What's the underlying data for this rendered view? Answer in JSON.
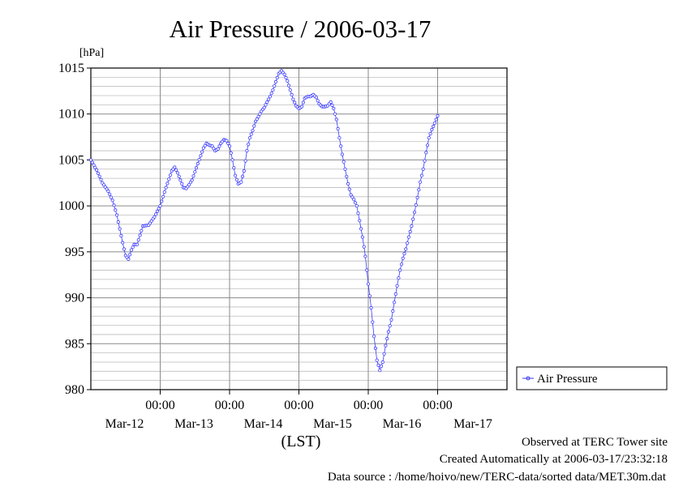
{
  "chart_data": {
    "type": "line",
    "title": "Air Pressure / 2006-03-17",
    "ylabel": "[hPa]",
    "xlabel": "(LST)",
    "ylim": [
      980,
      1015
    ],
    "yticks": [
      980,
      985,
      990,
      995,
      1000,
      1005,
      1010,
      1015
    ],
    "x_unit": "hours since Mar-11 00:00 (LST)",
    "xlim": [
      24,
      168
    ],
    "x_tick_labels": [
      {
        "x": 48,
        "time": "00:00",
        "date": "Mar-12"
      },
      {
        "x": 72,
        "time": "00:00",
        "date": "Mar-13"
      },
      {
        "x": 96,
        "time": "00:00",
        "date": "Mar-14"
      },
      {
        "x": 120,
        "time": "00:00",
        "date": "Mar-15"
      },
      {
        "x": 144,
        "time": "00:00",
        "date": "Mar-16"
      },
      {
        "x": null,
        "time": "",
        "date": "Mar-17"
      }
    ],
    "grid": true,
    "legend_position": "right",
    "series": [
      {
        "name": "Air Pressure",
        "color": "#3a3aff",
        "points": [
          [
            24,
            1005.0
          ],
          [
            26,
            1003.9
          ],
          [
            28,
            1002.5
          ],
          [
            30,
            1001.6
          ],
          [
            31.5,
            1000.6
          ],
          [
            33,
            999.0
          ],
          [
            34,
            997.5
          ],
          [
            35,
            996.0
          ],
          [
            36,
            994.6
          ],
          [
            37,
            994.2
          ],
          [
            38,
            995.2
          ],
          [
            39,
            995.8
          ],
          [
            40,
            995.8
          ],
          [
            41,
            996.8
          ],
          [
            42,
            997.8
          ],
          [
            44,
            997.9
          ],
          [
            46,
            998.8
          ],
          [
            48,
            1000.0
          ],
          [
            50,
            1002.0
          ],
          [
            52,
            1003.8
          ],
          [
            53,
            1004.2
          ],
          [
            54,
            1003.6
          ],
          [
            55,
            1002.8
          ],
          [
            56,
            1002.0
          ],
          [
            57,
            1001.9
          ],
          [
            58,
            1002.3
          ],
          [
            59,
            1002.8
          ],
          [
            61,
            1004.6
          ],
          [
            63,
            1006.3
          ],
          [
            64,
            1006.8
          ],
          [
            65,
            1006.6
          ],
          [
            66,
            1006.5
          ],
          [
            67,
            1006.0
          ],
          [
            68,
            1006.2
          ],
          [
            69,
            1006.8
          ],
          [
            70,
            1007.2
          ],
          [
            71,
            1007.1
          ],
          [
            72,
            1006.5
          ],
          [
            73,
            1005.0
          ],
          [
            74,
            1003.3
          ],
          [
            75,
            1002.4
          ],
          [
            76,
            1002.6
          ],
          [
            77,
            1003.8
          ],
          [
            78,
            1006.0
          ],
          [
            79,
            1007.4
          ],
          [
            80,
            1008.2
          ],
          [
            81,
            1009.2
          ],
          [
            82,
            1009.7
          ],
          [
            83,
            1010.3
          ],
          [
            84,
            1010.7
          ],
          [
            85,
            1011.3
          ],
          [
            86,
            1011.9
          ],
          [
            87,
            1012.6
          ],
          [
            88,
            1013.5
          ],
          [
            89,
            1014.4
          ],
          [
            90,
            1014.7
          ],
          [
            91,
            1014.3
          ],
          [
            92,
            1013.6
          ],
          [
            93,
            1012.6
          ],
          [
            94,
            1011.6
          ],
          [
            95,
            1010.9
          ],
          [
            96,
            1010.6
          ],
          [
            97,
            1010.8
          ],
          [
            98,
            1011.7
          ],
          [
            99,
            1011.9
          ],
          [
            100,
            1011.9
          ],
          [
            101,
            1012.1
          ],
          [
            102,
            1011.8
          ],
          [
            103,
            1011.1
          ],
          [
            104,
            1010.8
          ],
          [
            105,
            1010.8
          ],
          [
            106,
            1010.9
          ],
          [
            107,
            1011.3
          ],
          [
            108,
            1010.6
          ],
          [
            109,
            1009.4
          ],
          [
            110,
            1007.4
          ],
          [
            111,
            1005.6
          ],
          [
            112,
            1004.0
          ],
          [
            113,
            1002.4
          ],
          [
            114,
            1001.2
          ],
          [
            115,
            1000.7
          ],
          [
            116,
            1000.0
          ],
          [
            117,
            998.4
          ],
          [
            118,
            996.6
          ],
          [
            119,
            994.5
          ],
          [
            120,
            991.5
          ],
          [
            121,
            988.9
          ],
          [
            122,
            985.8
          ],
          [
            123,
            983.2
          ],
          [
            124,
            982.1
          ],
          [
            125,
            983.0
          ],
          [
            126,
            984.8
          ],
          [
            127,
            986.3
          ],
          [
            128,
            987.6
          ],
          [
            129,
            989.5
          ],
          [
            130,
            991.3
          ],
          [
            131,
            993.0
          ],
          [
            132,
            994.3
          ],
          [
            133,
            995.3
          ],
          [
            134,
            996.6
          ],
          [
            135,
            997.8
          ],
          [
            136,
            999.3
          ],
          [
            137,
            1000.9
          ],
          [
            138,
            1002.6
          ],
          [
            139,
            1004.0
          ],
          [
            140,
            1005.8
          ],
          [
            141,
            1007.4
          ],
          [
            142,
            1008.3
          ],
          [
            143,
            1009.0
          ],
          [
            144,
            1009.8
          ]
        ]
      }
    ]
  },
  "footer": {
    "line1": "Observed at TERC Tower site",
    "line2": "Created Automatically at 2006-03-17/23:32:18",
    "line3": "Data source : /home/hoivo/new/TERC-data/sorted  data/MET.30m.dat"
  }
}
